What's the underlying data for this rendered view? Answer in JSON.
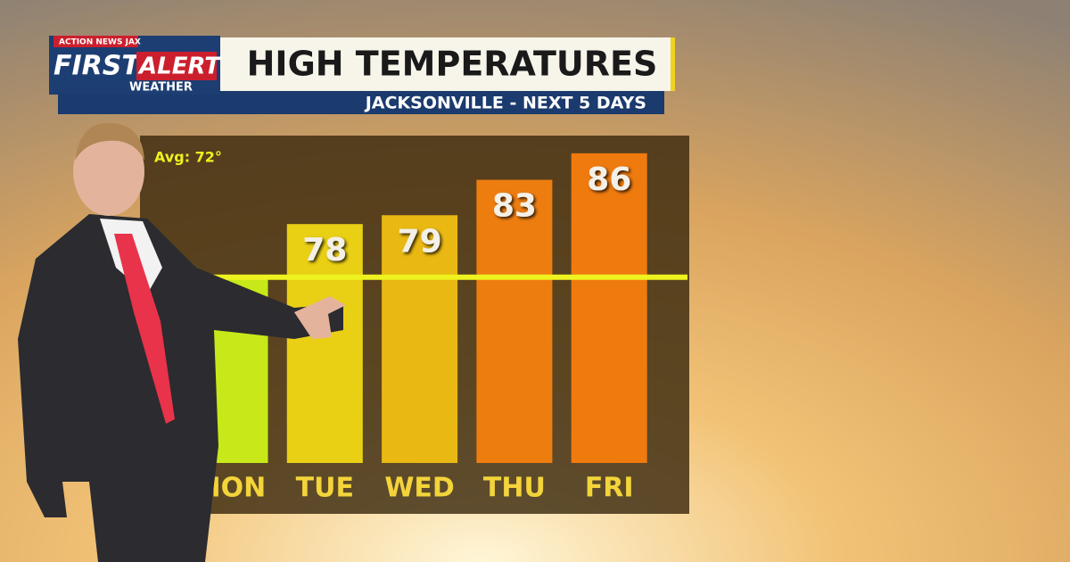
{
  "logo": {
    "network": "ACTION NEWS JAX",
    "first": "FIRST",
    "alert": "ALERT",
    "weather": "WEATHER"
  },
  "chart_data": {
    "type": "bar",
    "title": "HIGH TEMPERATURES",
    "subtitle": "JACKSONVILLE - NEXT 5 DAYS",
    "categories": [
      "MON",
      "TUE",
      "WED",
      "THU",
      "FRI"
    ],
    "values": [
      72,
      78,
      79,
      83,
      86
    ],
    "colors": [
      "#c8e81a",
      "#ead015",
      "#e9b812",
      "#ee7d10",
      "#ef7a0e"
    ],
    "avg": 72,
    "avg_label": "Avg: 72°",
    "avg_color": "#eef21e",
    "ylim": [
      51,
      88
    ]
  }
}
